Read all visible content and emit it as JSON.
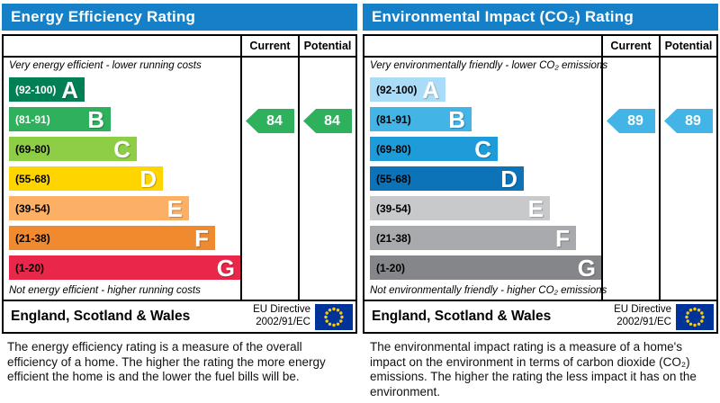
{
  "left_chart": {
    "title": "Energy Efficiency Rating",
    "columns": {
      "current": "Current",
      "potential": "Potential"
    },
    "top_caption": "Very energy efficient - lower running costs",
    "bottom_caption": "Not energy efficient - higher running costs",
    "bands": [
      {
        "range": "(92-100)",
        "letter": "A",
        "color": "#008054",
        "label_color": "#ffffff"
      },
      {
        "range": "(81-91)",
        "letter": "B",
        "color": "#2eb05c",
        "label_color": "#ffffff"
      },
      {
        "range": "(69-80)",
        "letter": "C",
        "color": "#8dce46",
        "label_color": "#000000"
      },
      {
        "range": "(55-68)",
        "letter": "D",
        "color": "#ffd500",
        "label_color": "#000000"
      },
      {
        "range": "(39-54)",
        "letter": "E",
        "color": "#fbb066",
        "label_color": "#000000"
      },
      {
        "range": "(21-38)",
        "letter": "F",
        "color": "#ef8a2f",
        "label_color": "#000000"
      },
      {
        "range": "(1-20)",
        "letter": "G",
        "color": "#e8274a",
        "label_color": "#000000"
      }
    ],
    "current_value": "84",
    "potential_value": "84",
    "arrow_color": "#2eb05c",
    "arrow_band_index": 1,
    "footer": {
      "region": "England, Scotland & Wales",
      "directive_line1": "EU Directive",
      "directive_line2": "2002/91/EC"
    },
    "description": "The energy efficiency rating is a measure of the overall efficiency of a home. The higher the rating the more energy efficient the home is and the lower the fuel bills will be."
  },
  "right_chart": {
    "title": "Environmental Impact (CO₂) Rating",
    "columns": {
      "current": "Current",
      "potential": "Potential"
    },
    "top_caption": "Very environmentally friendly - lower CO₂ emissions",
    "bottom_caption": "Not environmentally friendly - higher CO₂ emissions",
    "bands": [
      {
        "range": "(92-100)",
        "letter": "A",
        "color": "#aadcf7",
        "label_color": "#000000"
      },
      {
        "range": "(81-91)",
        "letter": "B",
        "color": "#42b4e6",
        "label_color": "#000000"
      },
      {
        "range": "(69-80)",
        "letter": "C",
        "color": "#1e9cd9",
        "label_color": "#000000"
      },
      {
        "range": "(55-68)",
        "letter": "D",
        "color": "#0d73b9",
        "label_color": "#000000"
      },
      {
        "range": "(39-54)",
        "letter": "E",
        "color": "#c8c9ca",
        "label_color": "#000000"
      },
      {
        "range": "(21-38)",
        "letter": "F",
        "color": "#a9aaad",
        "label_color": "#000000"
      },
      {
        "range": "(1-20)",
        "letter": "G",
        "color": "#85868a",
        "label_color": "#000000"
      }
    ],
    "current_value": "89",
    "potential_value": "89",
    "arrow_color": "#42b4e6",
    "arrow_band_index": 1,
    "footer": {
      "region": "England, Scotland & Wales",
      "directive_line1": "EU Directive",
      "directive_line2": "2002/91/EC"
    },
    "description": "The environmental impact rating is a measure of a home's impact on the environment in terms of carbon dioxide (CO₂) emissions. The higher the rating the less impact it has on the environment."
  },
  "chart_data": [
    {
      "type": "bar",
      "title": "Energy Efficiency Rating",
      "categories": [
        "A (92-100)",
        "B (81-91)",
        "C (69-80)",
        "D (55-68)",
        "E (39-54)",
        "F (21-38)",
        "G (1-20)"
      ],
      "current": 84,
      "potential": 84,
      "current_band": "B",
      "potential_band": "B",
      "legend": [
        "Current",
        "Potential"
      ],
      "footer": "England, Scotland & Wales — EU Directive 2002/91/EC"
    },
    {
      "type": "bar",
      "title": "Environmental Impact (CO₂) Rating",
      "categories": [
        "A (92-100)",
        "B (81-91)",
        "C (69-80)",
        "D (55-68)",
        "E (39-54)",
        "F (21-38)",
        "G (1-20)"
      ],
      "current": 89,
      "potential": 89,
      "current_band": "B",
      "potential_band": "B",
      "legend": [
        "Current",
        "Potential"
      ],
      "footer": "England, Scotland & Wales — EU Directive 2002/91/EC"
    }
  ]
}
